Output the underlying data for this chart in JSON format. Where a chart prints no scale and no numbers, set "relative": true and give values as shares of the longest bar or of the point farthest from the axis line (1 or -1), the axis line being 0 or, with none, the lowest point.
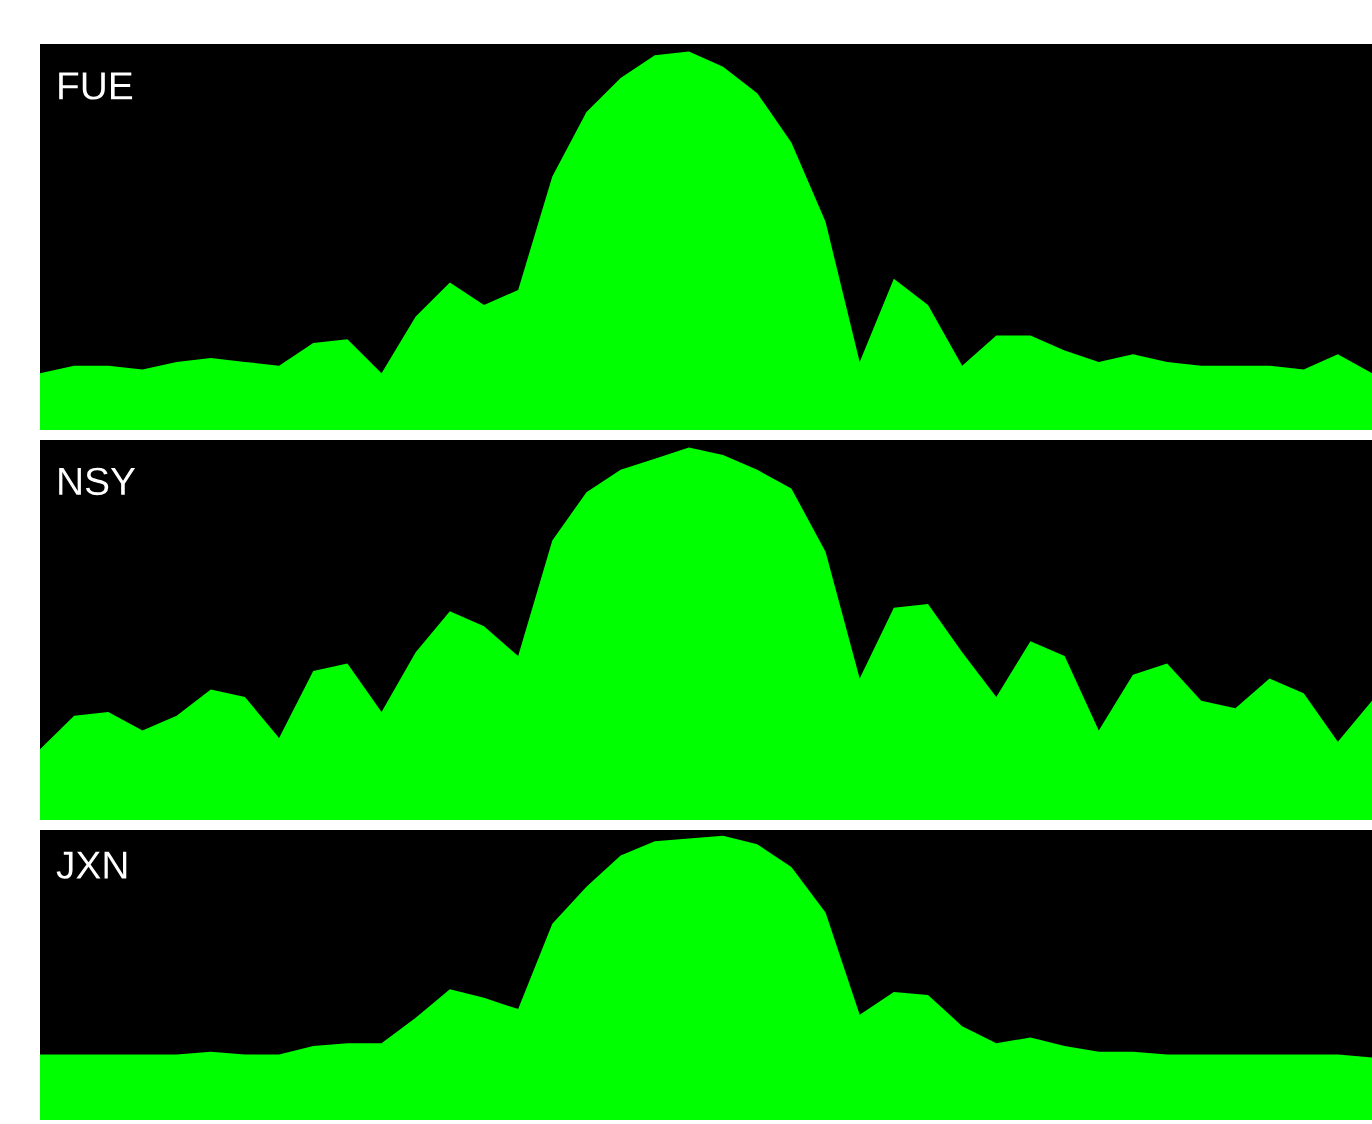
{
  "chart_data": [
    {
      "type": "area",
      "title": "FUE",
      "relative": true,
      "categories": [
        null,
        null,
        null,
        null,
        null,
        null,
        null,
        null,
        null,
        null,
        null,
        null,
        null,
        null,
        null,
        null,
        null,
        null,
        null,
        null,
        null,
        null,
        null,
        null,
        null,
        null,
        null,
        null,
        null,
        null,
        null,
        null,
        null,
        null,
        null,
        null,
        null,
        null,
        null,
        null
      ],
      "series": [
        {
          "color": "#00ff00",
          "values": [
            0.15,
            0.17,
            0.17,
            0.16,
            0.18,
            0.19,
            0.18,
            0.17,
            0.23,
            0.24,
            0.15,
            0.3,
            0.39,
            0.33,
            0.37,
            0.67,
            0.84,
            0.93,
            0.99,
            1,
            0.96,
            0.89,
            0.76,
            0.55,
            0.18,
            0.4,
            0.33,
            0.17,
            0.25,
            0.25,
            0.21,
            0.18,
            0.2,
            0.18,
            0.17,
            0.17,
            0.17,
            0.16,
            0.2,
            0.15
          ]
        }
      ]
    },
    {
      "type": "area",
      "title": "NSY",
      "relative": true,
      "categories": [
        null,
        null,
        null,
        null,
        null,
        null,
        null,
        null,
        null,
        null,
        null,
        null,
        null,
        null,
        null,
        null,
        null,
        null,
        null,
        null,
        null,
        null,
        null,
        null,
        null,
        null,
        null,
        null,
        null,
        null,
        null,
        null,
        null,
        null,
        null,
        null,
        null,
        null,
        null,
        null
      ],
      "series": [
        {
          "color": "#00ff00",
          "values": [
            0.19,
            0.28,
            0.29,
            0.24,
            0.28,
            0.35,
            0.33,
            0.22,
            0.4,
            0.42,
            0.29,
            0.45,
            0.56,
            0.52,
            0.44,
            0.75,
            0.88,
            0.94,
            0.97,
            1,
            0.98,
            0.94,
            0.89,
            0.72,
            0.38,
            0.57,
            0.58,
            0.45,
            0.33,
            0.48,
            0.44,
            0.24,
            0.39,
            0.42,
            0.32,
            0.3,
            0.38,
            0.34,
            0.21,
            0.32
          ]
        }
      ]
    },
    {
      "type": "area",
      "title": "JXN",
      "relative": true,
      "categories": [
        null,
        null,
        null,
        null,
        null,
        null,
        null,
        null,
        null,
        null,
        null,
        null,
        null,
        null,
        null,
        null,
        null,
        null,
        null,
        null,
        null,
        null,
        null,
        null,
        null,
        null,
        null,
        null,
        null,
        null,
        null,
        null,
        null,
        null,
        null,
        null,
        null,
        null,
        null,
        null
      ],
      "series": [
        {
          "color": "#00ff00",
          "values": [
            0.23,
            0.23,
            0.23,
            0.23,
            0.23,
            0.24,
            0.23,
            0.23,
            0.26,
            0.27,
            0.27,
            0.36,
            0.46,
            0.43,
            0.39,
            0.69,
            0.82,
            0.93,
            0.98,
            0.99,
            1,
            0.97,
            0.89,
            0.73,
            0.37,
            0.45,
            0.44,
            0.33,
            0.27,
            0.29,
            0.26,
            0.24,
            0.24,
            0.23,
            0.23,
            0.23,
            0.23,
            0.23,
            0.23,
            0.22
          ]
        }
      ]
    }
  ]
}
